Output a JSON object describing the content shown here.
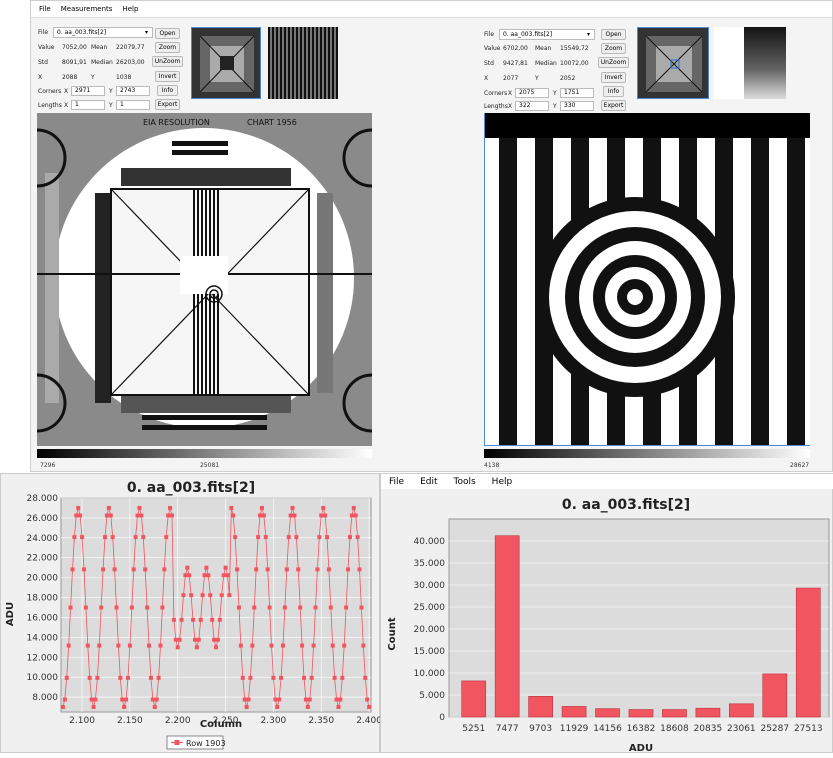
{
  "top_menu": [
    "File",
    "Measurements",
    "Help"
  ],
  "left": {
    "file_label": "File",
    "file_value": "0. aa_003.fits[2]",
    "value_label": "Value",
    "value": "7052,00",
    "mean_label": "Mean",
    "mean": "22079,77",
    "std_label": "Std",
    "std": "8091,91",
    "median_label": "Median",
    "median": "26203,00",
    "x_label": "X",
    "x": "2088",
    "y_label": "Y",
    "y": "1038",
    "corners_label": "Corners",
    "cx_label": "X",
    "cx": "2971",
    "cy_label": "Y",
    "cy": "2743",
    "lengths_label": "Lengths",
    "lx_label": "X",
    "lx": "1",
    "ly_label": "Y",
    "ly": "1",
    "buttons": [
      "Open",
      "Zoom",
      "UnZoom",
      "Invert",
      "Info",
      "Export"
    ],
    "scale_min": "7296",
    "scale_max": "25081",
    "chart_text": {
      "top": "EIA RESOLUTION",
      "right": "CHART 1956"
    }
  },
  "right": {
    "file_label": "File",
    "file_value": "0. aa_003.fits[2]",
    "value_label": "Value",
    "value": "6702,00",
    "mean_label": "Mean",
    "mean": "15549,72",
    "std_label": "Std",
    "std": "9427,81",
    "median_label": "Median",
    "median": "10072,00",
    "x_label": "X",
    "x": "2077",
    "y_label": "Y",
    "y": "2052",
    "corners_label": "Corners",
    "cx_label": "X",
    "cx": "2075",
    "cy_label": "Y",
    "cy": "1751",
    "lengths_label": "Lengths",
    "lx_label": "X",
    "lx": "322",
    "ly_label": "Y",
    "ly": "330",
    "buttons": [
      "Open",
      "Zoom",
      "UnZoom",
      "Invert",
      "Info",
      "Export"
    ],
    "scale_min": "4138",
    "scale_max": "28627"
  },
  "line_plot": {
    "title": "0. aa_003.fits[2]",
    "xlabel": "Column",
    "ylabel": "ADU",
    "legend": "Row 1903"
  },
  "histogram": {
    "menu": [
      "File",
      "Edit",
      "Tools",
      "Help"
    ],
    "title": "0. aa_003.fits[2]",
    "xlabel": "ADU",
    "ylabel": "Count"
  },
  "colors": {
    "series": "#f05560",
    "plot_bg": "#dcdcdc"
  },
  "chart_data": [
    {
      "type": "line",
      "title": "0. aa_003.fits[2]",
      "xlabel": "Column",
      "ylabel": "ADU",
      "xlim": [
        2078,
        2402
      ],
      "ylim": [
        6500,
        28000
      ],
      "xticks": [
        "2.100",
        "2.150",
        "2.200",
        "2.250",
        "2.300",
        "2.350",
        "2.400"
      ],
      "yticks": [
        "8.000",
        "10.000",
        "12.000",
        "14.000",
        "16.000",
        "18.000",
        "20.000",
        "22.000",
        "24.000",
        "26.000",
        "28.000"
      ],
      "series": [
        {
          "name": "Row 1903"
        }
      ],
      "legend": "bottom"
    },
    {
      "type": "bar",
      "title": "0. aa_003.fits[2]",
      "xlabel": "ADU",
      "ylabel": "Count",
      "categories": [
        "5251",
        "7477",
        "9703",
        "11929",
        "14156",
        "16382",
        "18608",
        "20835",
        "23061",
        "25287",
        "27513"
      ],
      "values": [
        8200,
        41200,
        4700,
        2400,
        1900,
        1700,
        1700,
        2000,
        3000,
        9800,
        29300
      ],
      "ylim": [
        0,
        45000
      ],
      "yticks": [
        "0",
        "5.000",
        "10.000",
        "15.000",
        "20.000",
        "25.000",
        "30.000",
        "35.000",
        "40.000"
      ]
    }
  ]
}
